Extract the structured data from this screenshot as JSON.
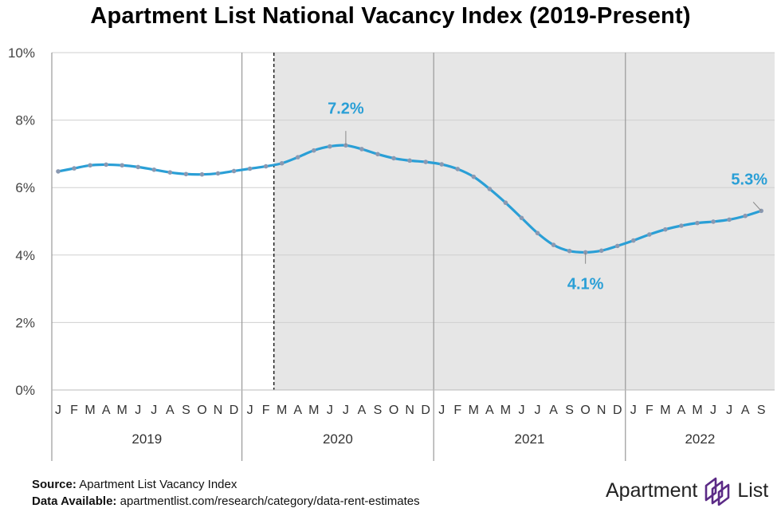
{
  "title": "Apartment List National Vacancy Index (2019-Present)",
  "chart_data": {
    "type": "line",
    "title": "Apartment List National Vacancy Index (2019-Present)",
    "ylim": [
      0,
      10
    ],
    "yticks": [
      "0%",
      "2%",
      "4%",
      "6%",
      "8%",
      "10%"
    ],
    "ytick_values": [
      0,
      2,
      4,
      6,
      8,
      10
    ],
    "grid": true,
    "month_labels": [
      "J",
      "F",
      "M",
      "A",
      "M",
      "J",
      "J",
      "A",
      "S",
      "O",
      "N",
      "D",
      "J",
      "F",
      "M",
      "A",
      "M",
      "J",
      "J",
      "A",
      "S",
      "O",
      "N",
      "D",
      "J",
      "F",
      "M",
      "A",
      "M",
      "J",
      "J",
      "A",
      "S",
      "O",
      "N",
      "D",
      "J",
      "F",
      "M",
      "A",
      "M",
      "J",
      "J",
      "A",
      "S"
    ],
    "years": [
      "2019",
      "2020",
      "2021",
      "2022"
    ],
    "x": [
      "2019-01",
      "2019-02",
      "2019-03",
      "2019-04",
      "2019-05",
      "2019-06",
      "2019-07",
      "2019-08",
      "2019-09",
      "2019-10",
      "2019-11",
      "2019-12",
      "2020-01",
      "2020-02",
      "2020-03",
      "2020-04",
      "2020-05",
      "2020-06",
      "2020-07",
      "2020-08",
      "2020-09",
      "2020-10",
      "2020-11",
      "2020-12",
      "2021-01",
      "2021-02",
      "2021-03",
      "2021-04",
      "2021-05",
      "2021-06",
      "2021-07",
      "2021-08",
      "2021-09",
      "2021-10",
      "2021-11",
      "2021-12",
      "2022-01",
      "2022-02",
      "2022-03",
      "2022-04",
      "2022-05",
      "2022-06",
      "2022-07",
      "2022-08",
      "2022-09"
    ],
    "series": [
      {
        "values": [
          6.48,
          6.57,
          6.66,
          6.68,
          6.66,
          6.61,
          6.53,
          6.45,
          6.4,
          6.39,
          6.42,
          6.49,
          6.56,
          6.63,
          6.72,
          6.9,
          7.1,
          7.22,
          7.25,
          7.14,
          6.99,
          6.87,
          6.8,
          6.76,
          6.69,
          6.55,
          6.32,
          5.96,
          5.55,
          5.1,
          4.65,
          4.3,
          4.12,
          4.08,
          4.13,
          4.27,
          4.43,
          4.61,
          4.76,
          4.87,
          4.95,
          4.99,
          5.05,
          5.16,
          5.31
        ]
      }
    ],
    "shaded_region_start": "2020-03",
    "annotations": [
      {
        "label": "7.2%",
        "x": "2020-07",
        "y": 7.25
      },
      {
        "label": "4.1%",
        "x": "2021-10",
        "y": 4.08
      },
      {
        "label": "5.3%",
        "x": "2022-09",
        "y": 5.31
      }
    ],
    "colors": {
      "line": "#2a9fd6",
      "marker": "#8a99b2",
      "shade": "#e6e6e6",
      "annotation": "#2a9fd6"
    }
  },
  "footer": {
    "source_label": "Source:",
    "source_text": " Apartment List Vacancy Index",
    "data_label": "Data Available:",
    "data_text": " apartmentlist.com/research/category/data-rent-estimates"
  },
  "logo": {
    "word1": "Apartment",
    "word2": "List",
    "icon": "apartment-list-logo-icon"
  }
}
